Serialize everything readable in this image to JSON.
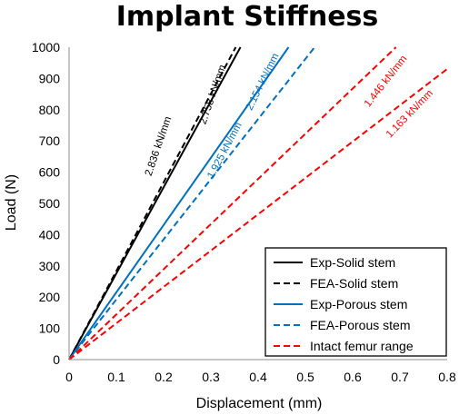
{
  "chart_data": {
    "type": "line",
    "title": "Implant Stiffness",
    "xlabel": "Displacement (mm)",
    "ylabel": "Load (N)",
    "xlim": [
      0,
      0.8
    ],
    "ylim": [
      0,
      1000
    ],
    "x_ticks": [
      "0",
      "0.1",
      "0.2",
      "0.3",
      "0.4",
      "0.5",
      "0.6",
      "0.7",
      "0.8"
    ],
    "y_ticks": [
      "0",
      "100",
      "200",
      "300",
      "400",
      "500",
      "600",
      "700",
      "800",
      "900",
      "1000"
    ],
    "grid": false,
    "legend_position": "bottom-right",
    "series": [
      {
        "name": "Exp-Solid stem",
        "color": "#000000",
        "dash": "solid",
        "x": [
          0,
          0.3626
        ],
        "y": [
          0,
          1000
        ]
      },
      {
        "name": "FEA-Solid stem",
        "color": "#000000",
        "dash": "dashed",
        "x": [
          0,
          0.3526
        ],
        "y": [
          0,
          1000
        ]
      },
      {
        "name": "Exp-Porous stem",
        "color": "#0070C0",
        "dash": "solid",
        "x": [
          0,
          0.4643
        ],
        "y": [
          0,
          1000
        ]
      },
      {
        "name": "FEA-Porous stem",
        "color": "#0070C0",
        "dash": "dashed",
        "x": [
          0,
          0.5195
        ],
        "y": [
          0,
          1000
        ]
      },
      {
        "name": "Intact femur range",
        "color": "#FF0000",
        "dash": "dashed",
        "x": [
          0,
          0.6916
        ],
        "y": [
          0,
          1000
        ]
      },
      {
        "name": "",
        "color": "#FF0000",
        "dash": "dashed",
        "x": [
          0,
          0.8
        ],
        "y": [
          0,
          930.4
        ]
      }
    ],
    "annotations": [
      {
        "text": "2.836 kN/mm",
        "color": "#000000",
        "x": 0.195,
        "y": 680,
        "angle_deg": -71
      },
      {
        "text": "2.758 kN/mm",
        "color": "#000000",
        "x": 0.31,
        "y": 845,
        "angle_deg": -71
      },
      {
        "text": "2.154 kN/mm",
        "color": "#0070C0",
        "x": 0.415,
        "y": 885,
        "angle_deg": -64
      },
      {
        "text": "1.925 kN/mm",
        "color": "#0070C0",
        "x": 0.335,
        "y": 665,
        "angle_deg": -62
      },
      {
        "text": "1.446 kN/mm",
        "color": "#FF0000",
        "x": 0.675,
        "y": 885,
        "angle_deg": -52
      },
      {
        "text": "1.163 kN/mm",
        "color": "#FF0000",
        "x": 0.725,
        "y": 780,
        "angle_deg": -46
      }
    ]
  }
}
